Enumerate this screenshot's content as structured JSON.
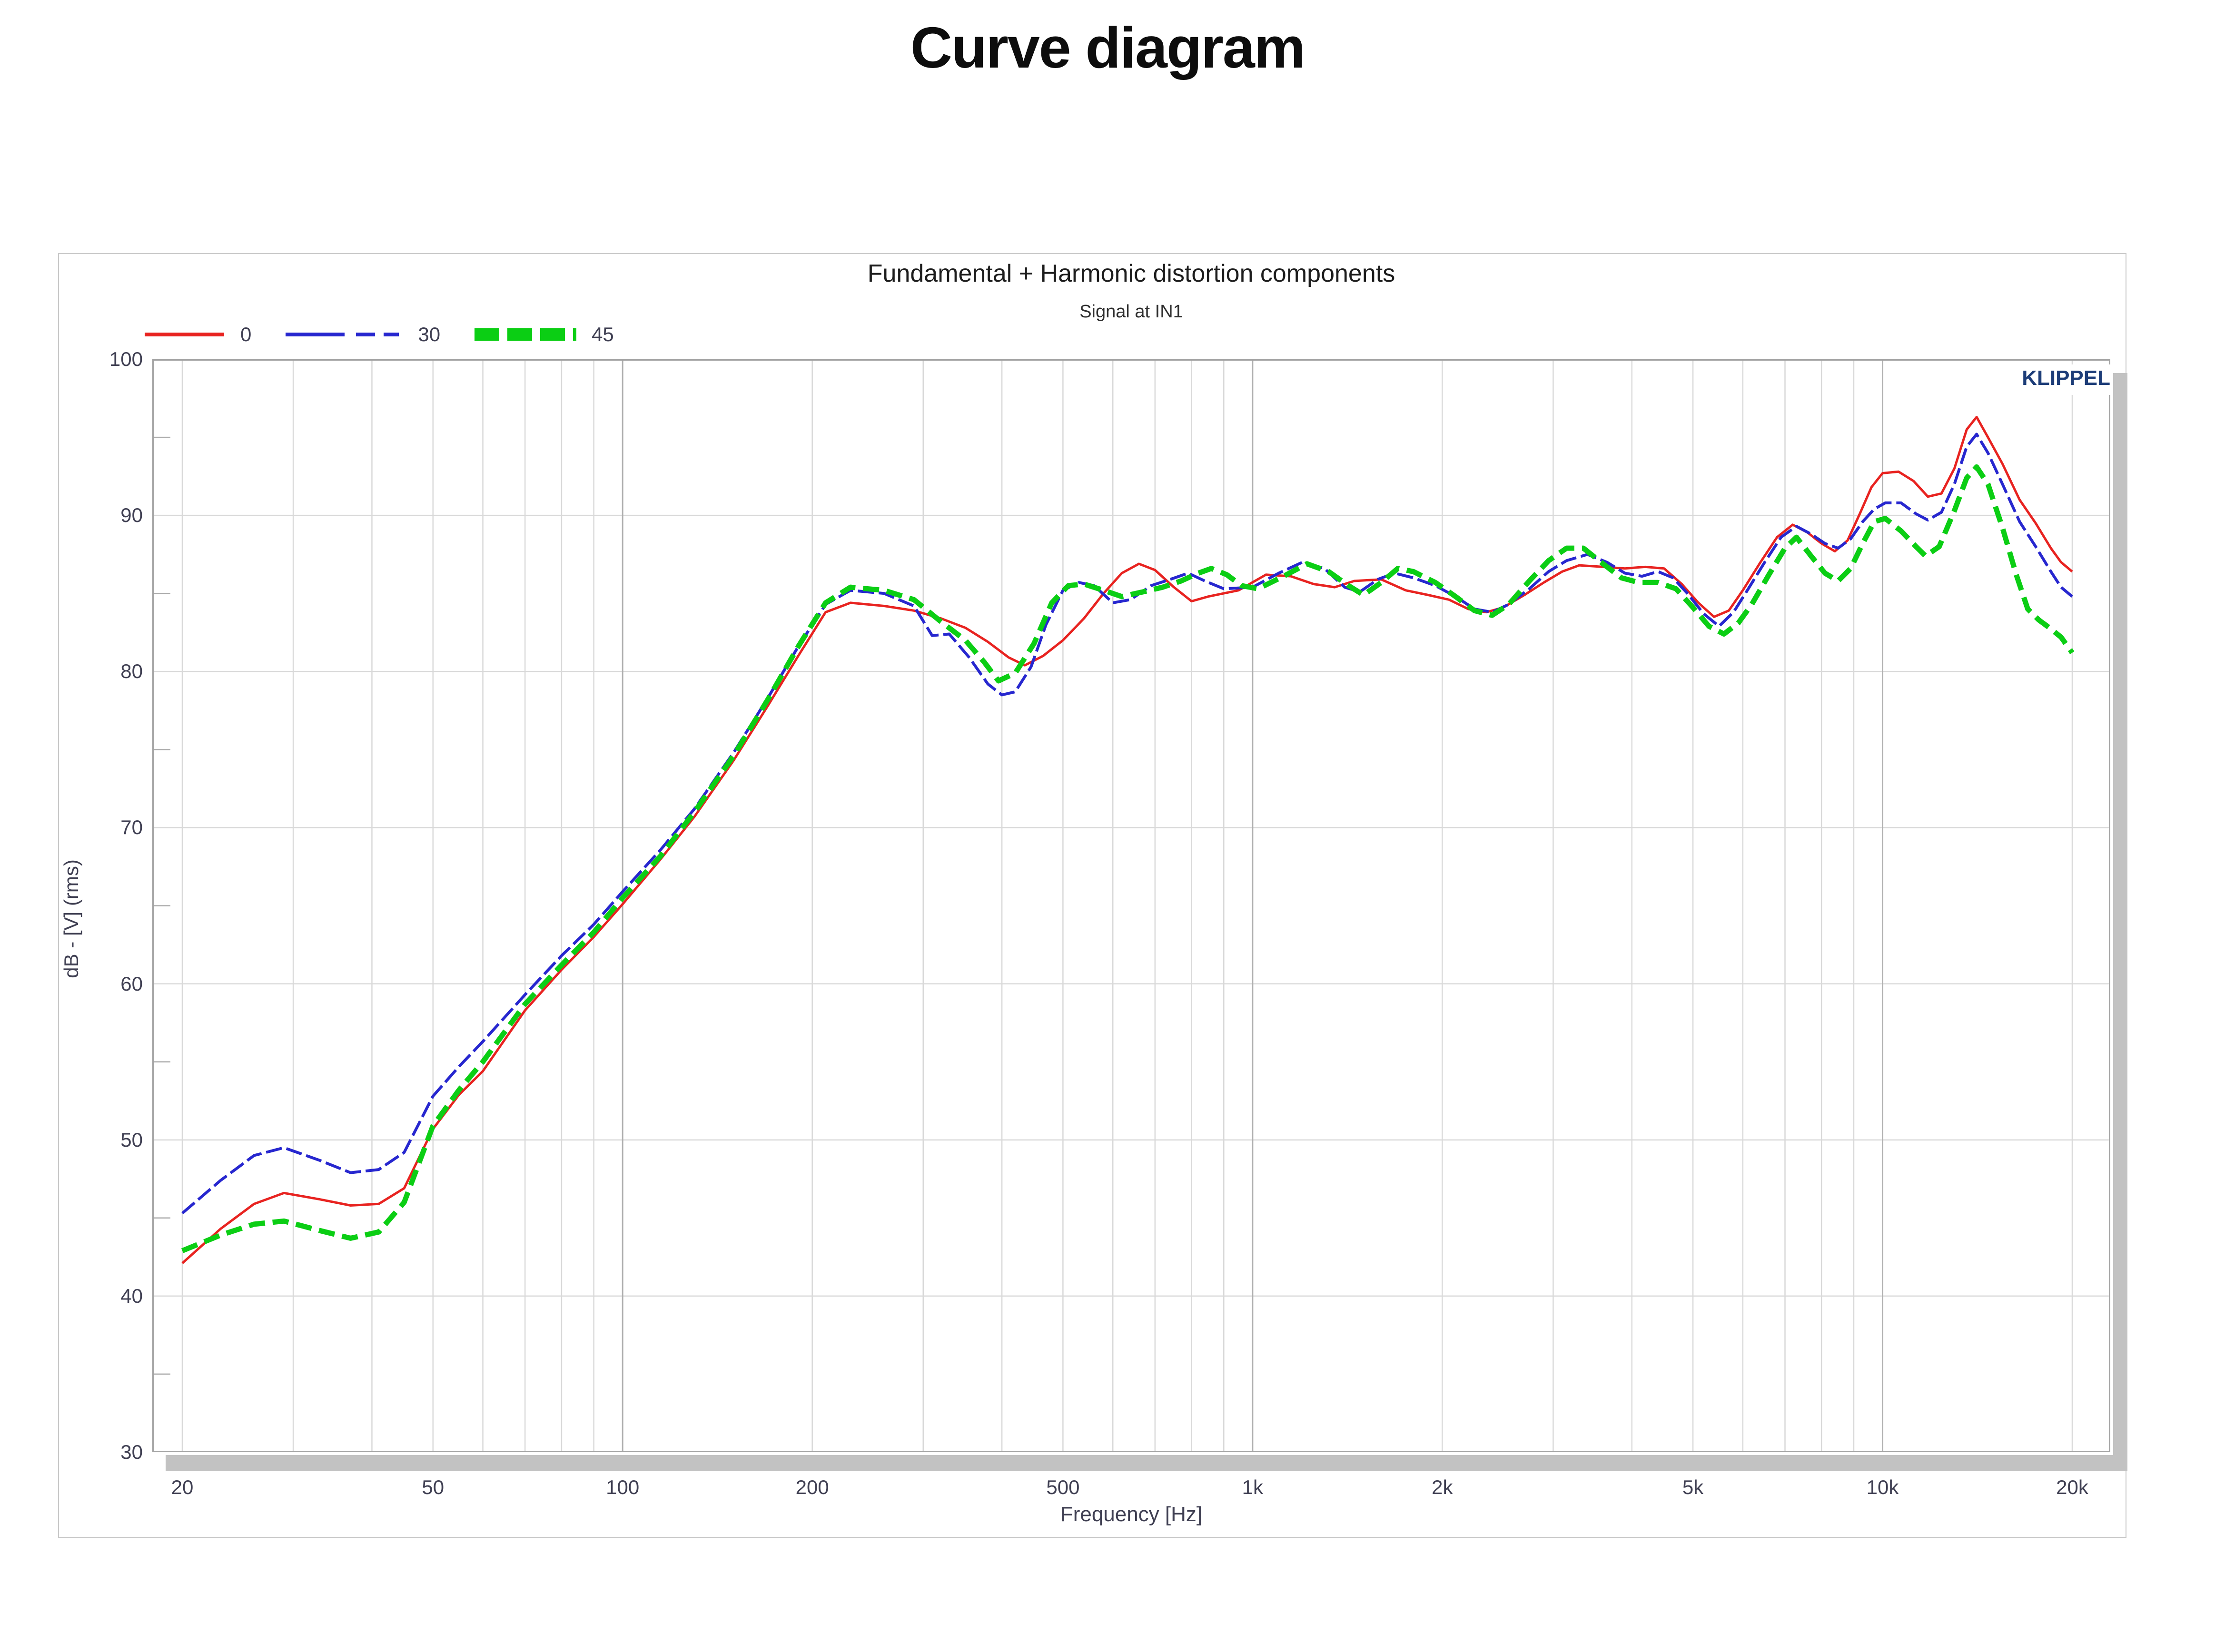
{
  "page": {
    "title": "Curve diagram"
  },
  "chart": {
    "title": "Fundamental + Harmonic distortion components",
    "subtitle": "Signal at IN1",
    "watermark": "KLIPPEL",
    "xlabel": "Frequency [Hz]",
    "ylabel": "dB - [V]  (rms)",
    "legend": [
      {
        "label": "0",
        "color": "#e82320",
        "style": "solid"
      },
      {
        "label": "30",
        "color": "#2727cf",
        "style": "dashed"
      },
      {
        "label": "45",
        "color": "#0bce14",
        "style": "thick-square-dashed"
      }
    ]
  },
  "chart_data": {
    "type": "line",
    "title": "Fundamental + Harmonic distortion components",
    "subtitle": "Signal at IN1",
    "xlabel": "Frequency [Hz]",
    "ylabel": "dB - [V]  (rms)",
    "x_scale": "log",
    "xlim": [
      20,
      20000
    ],
    "ylim": [
      30,
      100
    ],
    "grid": true,
    "legend_position": "top-left",
    "x_ticks_labeled": [
      [
        20,
        "20"
      ],
      [
        50,
        "50"
      ],
      [
        100,
        "100"
      ],
      [
        200,
        "200"
      ],
      [
        500,
        "500"
      ],
      [
        1000,
        "1k"
      ],
      [
        2000,
        "2k"
      ],
      [
        5000,
        "5k"
      ],
      [
        10000,
        "10k"
      ],
      [
        20000,
        "20k"
      ]
    ],
    "x_grid_light": [
      20,
      30,
      40,
      50,
      60,
      70,
      80,
      90,
      200,
      300,
      400,
      500,
      600,
      700,
      800,
      900,
      2000,
      3000,
      4000,
      5000,
      6000,
      7000,
      8000,
      9000,
      20000
    ],
    "x_grid_dark": [
      100,
      1000,
      10000
    ],
    "y_ticks": [
      30,
      40,
      50,
      60,
      70,
      80,
      90,
      100
    ],
    "y_minor_ticks": [
      35,
      45,
      55,
      65,
      75,
      85,
      95
    ],
    "series": [
      {
        "name": "0",
        "color": "#e82320",
        "width": 5,
        "dash": null,
        "points": [
          [
            20,
            42.1
          ],
          [
            23,
            44.3
          ],
          [
            26,
            45.9
          ],
          [
            29,
            46.6
          ],
          [
            33,
            46.2
          ],
          [
            37,
            45.8
          ],
          [
            41,
            45.9
          ],
          [
            45,
            46.9
          ],
          [
            50,
            50.7
          ],
          [
            55,
            52.9
          ],
          [
            60,
            54.4
          ],
          [
            70,
            58.3
          ],
          [
            80,
            60.9
          ],
          [
            90,
            63.0
          ],
          [
            100,
            65.1
          ],
          [
            115,
            68.0
          ],
          [
            130,
            70.7
          ],
          [
            150,
            74.3
          ],
          [
            170,
            77.8
          ],
          [
            190,
            81.0
          ],
          [
            210,
            83.8
          ],
          [
            230,
            84.4
          ],
          [
            260,
            84.2
          ],
          [
            290,
            83.9
          ],
          [
            320,
            83.4
          ],
          [
            350,
            82.8
          ],
          [
            380,
            81.9
          ],
          [
            410,
            80.9
          ],
          [
            435,
            80.4
          ],
          [
            465,
            81.0
          ],
          [
            500,
            82.0
          ],
          [
            540,
            83.4
          ],
          [
            580,
            85.0
          ],
          [
            620,
            86.3
          ],
          [
            660,
            86.9
          ],
          [
            700,
            86.5
          ],
          [
            750,
            85.4
          ],
          [
            800,
            84.5
          ],
          [
            850,
            84.8
          ],
          [
            950,
            85.2
          ],
          [
            1050,
            86.2
          ],
          [
            1150,
            86.1
          ],
          [
            1250,
            85.6
          ],
          [
            1350,
            85.4
          ],
          [
            1450,
            85.8
          ],
          [
            1600,
            85.9
          ],
          [
            1750,
            85.2
          ],
          [
            1900,
            84.9
          ],
          [
            2050,
            84.6
          ],
          [
            2200,
            84.0
          ],
          [
            2350,
            83.8
          ],
          [
            2500,
            84.1
          ],
          [
            2700,
            84.9
          ],
          [
            2900,
            85.7
          ],
          [
            3100,
            86.4
          ],
          [
            3300,
            86.8
          ],
          [
            3600,
            86.7
          ],
          [
            3900,
            86.6
          ],
          [
            4200,
            86.7
          ],
          [
            4500,
            86.6
          ],
          [
            4800,
            85.6
          ],
          [
            5100,
            84.4
          ],
          [
            5400,
            83.5
          ],
          [
            5700,
            83.9
          ],
          [
            6000,
            85.2
          ],
          [
            6400,
            87.0
          ],
          [
            6800,
            88.6
          ],
          [
            7200,
            89.4
          ],
          [
            7600,
            88.9
          ],
          [
            8000,
            88.2
          ],
          [
            8400,
            87.7
          ],
          [
            8800,
            88.4
          ],
          [
            9200,
            90.1
          ],
          [
            9600,
            91.8
          ],
          [
            10000,
            92.7
          ],
          [
            10600,
            92.8
          ],
          [
            11200,
            92.2
          ],
          [
            11800,
            91.2
          ],
          [
            12400,
            91.4
          ],
          [
            13000,
            93.0
          ],
          [
            13600,
            95.5
          ],
          [
            14100,
            96.3
          ],
          [
            14700,
            95.0
          ],
          [
            15500,
            93.3
          ],
          [
            16500,
            91.0
          ],
          [
            17500,
            89.5
          ],
          [
            18500,
            87.9
          ],
          [
            19200,
            87.0
          ],
          [
            20000,
            86.4
          ]
        ]
      },
      {
        "name": "30",
        "color": "#2727cf",
        "width": 6,
        "dash": "34 10",
        "points": [
          [
            20,
            45.3
          ],
          [
            23,
            47.4
          ],
          [
            26,
            49.0
          ],
          [
            29,
            49.5
          ],
          [
            33,
            48.7
          ],
          [
            37,
            47.9
          ],
          [
            41,
            48.1
          ],
          [
            45,
            49.2
          ],
          [
            50,
            52.8
          ],
          [
            55,
            54.7
          ],
          [
            60,
            56.3
          ],
          [
            70,
            59.3
          ],
          [
            80,
            61.8
          ],
          [
            90,
            63.8
          ],
          [
            100,
            65.9
          ],
          [
            115,
            68.6
          ],
          [
            130,
            71.2
          ],
          [
            150,
            74.8
          ],
          [
            170,
            78.3
          ],
          [
            190,
            81.6
          ],
          [
            210,
            84.3
          ],
          [
            230,
            85.2
          ],
          [
            260,
            85.0
          ],
          [
            290,
            84.2
          ],
          [
            310,
            82.3
          ],
          [
            330,
            82.4
          ],
          [
            355,
            80.9
          ],
          [
            380,
            79.2
          ],
          [
            400,
            78.5
          ],
          [
            420,
            78.7
          ],
          [
            445,
            80.3
          ],
          [
            470,
            83.0
          ],
          [
            500,
            85.2
          ],
          [
            530,
            85.7
          ],
          [
            560,
            85.5
          ],
          [
            600,
            84.4
          ],
          [
            640,
            84.6
          ],
          [
            690,
            85.5
          ],
          [
            740,
            85.9
          ],
          [
            790,
            86.3
          ],
          [
            840,
            85.8
          ],
          [
            900,
            85.3
          ],
          [
            1000,
            85.4
          ],
          [
            1100,
            86.3
          ],
          [
            1200,
            87.0
          ],
          [
            1300,
            86.6
          ],
          [
            1400,
            85.4
          ],
          [
            1480,
            85.1
          ],
          [
            1580,
            85.9
          ],
          [
            1680,
            86.3
          ],
          [
            1800,
            86.0
          ],
          [
            1950,
            85.5
          ],
          [
            2100,
            84.8
          ],
          [
            2250,
            84.0
          ],
          [
            2400,
            83.8
          ],
          [
            2550,
            84.3
          ],
          [
            2750,
            85.3
          ],
          [
            2950,
            86.4
          ],
          [
            3150,
            87.1
          ],
          [
            3400,
            87.5
          ],
          [
            3650,
            87.0
          ],
          [
            3900,
            86.3
          ],
          [
            4150,
            86.1
          ],
          [
            4400,
            86.4
          ],
          [
            4650,
            86.0
          ],
          [
            4900,
            85.0
          ],
          [
            5200,
            83.7
          ],
          [
            5500,
            82.9
          ],
          [
            5800,
            83.8
          ],
          [
            6100,
            85.2
          ],
          [
            6500,
            87.0
          ],
          [
            6900,
            88.6
          ],
          [
            7300,
            89.3
          ],
          [
            7700,
            88.8
          ],
          [
            8100,
            88.2
          ],
          [
            8500,
            87.9
          ],
          [
            8900,
            88.5
          ],
          [
            9300,
            89.6
          ],
          [
            9700,
            90.4
          ],
          [
            10100,
            90.8
          ],
          [
            10700,
            90.8
          ],
          [
            11300,
            90.1
          ],
          [
            11800,
            89.7
          ],
          [
            12400,
            90.2
          ],
          [
            13000,
            92.0
          ],
          [
            13600,
            94.4
          ],
          [
            14100,
            95.2
          ],
          [
            14700,
            94.0
          ],
          [
            15500,
            92.0
          ],
          [
            16500,
            89.6
          ],
          [
            17500,
            88.0
          ],
          [
            18500,
            86.4
          ],
          [
            19200,
            85.4
          ],
          [
            20000,
            84.8
          ]
        ]
      },
      {
        "name": "45",
        "color": "#0bce14",
        "width": 11,
        "dash": "34 16",
        "points": [
          [
            20,
            42.9
          ],
          [
            23,
            43.9
          ],
          [
            26,
            44.6
          ],
          [
            29,
            44.8
          ],
          [
            33,
            44.2
          ],
          [
            37,
            43.7
          ],
          [
            41,
            44.1
          ],
          [
            45,
            46.0
          ],
          [
            50,
            50.9
          ],
          [
            55,
            53.2
          ],
          [
            60,
            55.0
          ],
          [
            70,
            58.7
          ],
          [
            80,
            61.2
          ],
          [
            90,
            63.3
          ],
          [
            100,
            65.5
          ],
          [
            115,
            68.2
          ],
          [
            130,
            71.0
          ],
          [
            150,
            74.6
          ],
          [
            170,
            78.2
          ],
          [
            190,
            81.6
          ],
          [
            210,
            84.4
          ],
          [
            230,
            85.4
          ],
          [
            260,
            85.2
          ],
          [
            290,
            84.6
          ],
          [
            320,
            83.2
          ],
          [
            350,
            82.0
          ],
          [
            375,
            80.6
          ],
          [
            395,
            79.4
          ],
          [
            420,
            79.9
          ],
          [
            450,
            81.8
          ],
          [
            480,
            84.4
          ],
          [
            510,
            85.5
          ],
          [
            540,
            85.6
          ],
          [
            580,
            85.2
          ],
          [
            620,
            84.8
          ],
          [
            670,
            85.1
          ],
          [
            720,
            85.4
          ],
          [
            770,
            85.8
          ],
          [
            820,
            86.3
          ],
          [
            860,
            86.6
          ],
          [
            910,
            86.2
          ],
          [
            960,
            85.5
          ],
          [
            1020,
            85.3
          ],
          [
            1120,
            86.1
          ],
          [
            1220,
            86.9
          ],
          [
            1320,
            86.4
          ],
          [
            1420,
            85.5
          ],
          [
            1500,
            84.9
          ],
          [
            1600,
            85.7
          ],
          [
            1700,
            86.6
          ],
          [
            1800,
            86.4
          ],
          [
            1950,
            85.7
          ],
          [
            2100,
            84.8
          ],
          [
            2250,
            83.9
          ],
          [
            2400,
            83.6
          ],
          [
            2550,
            84.3
          ],
          [
            2750,
            85.8
          ],
          [
            2950,
            87.1
          ],
          [
            3150,
            87.9
          ],
          [
            3350,
            87.9
          ],
          [
            3600,
            86.9
          ],
          [
            3850,
            86.0
          ],
          [
            4100,
            85.7
          ],
          [
            4400,
            85.7
          ],
          [
            4700,
            85.3
          ],
          [
            5000,
            84.1
          ],
          [
            5300,
            82.9
          ],
          [
            5600,
            82.4
          ],
          [
            5900,
            83.1
          ],
          [
            6200,
            84.3
          ],
          [
            6600,
            86.2
          ],
          [
            7000,
            87.9
          ],
          [
            7300,
            88.6
          ],
          [
            7700,
            87.4
          ],
          [
            8100,
            86.3
          ],
          [
            8500,
            85.8
          ],
          [
            8900,
            86.6
          ],
          [
            9300,
            88.2
          ],
          [
            9700,
            89.6
          ],
          [
            10100,
            89.8
          ],
          [
            10700,
            89.0
          ],
          [
            11300,
            88.0
          ],
          [
            11700,
            87.4
          ],
          [
            12300,
            88.0
          ],
          [
            13000,
            90.3
          ],
          [
            13600,
            92.4
          ],
          [
            14100,
            93.1
          ],
          [
            14700,
            92.0
          ],
          [
            15500,
            89.2
          ],
          [
            16300,
            86.2
          ],
          [
            17000,
            84.0
          ],
          [
            17700,
            83.3
          ],
          [
            18400,
            82.8
          ],
          [
            19200,
            82.2
          ],
          [
            20000,
            81.2
          ]
        ]
      }
    ]
  }
}
